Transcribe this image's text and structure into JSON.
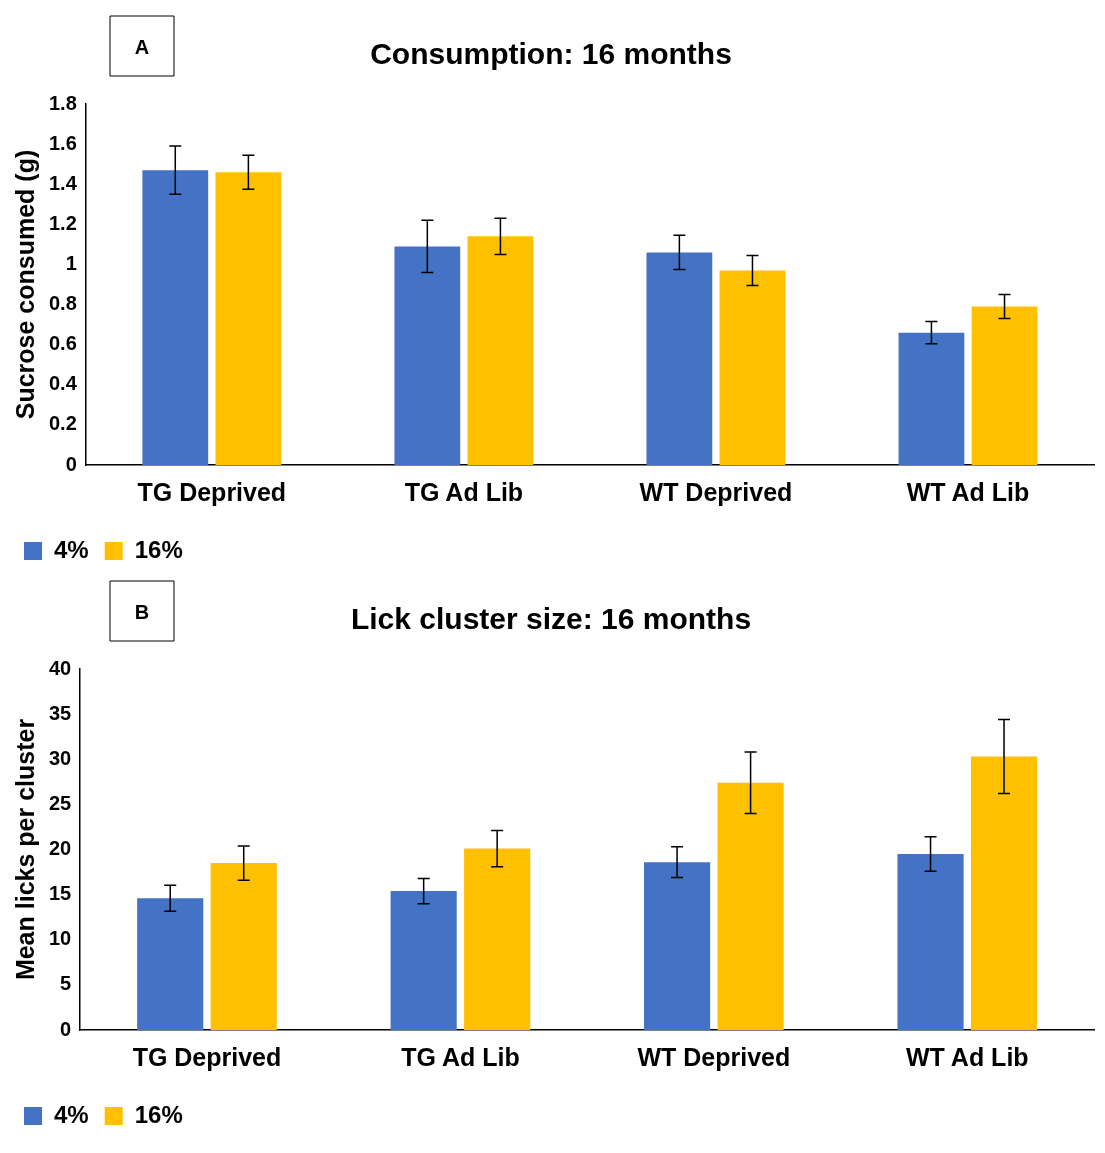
{
  "chart_data": [
    {
      "type": "bar",
      "title": "Consumption: 16 months",
      "ylabel": "Sucrose consumed (g)",
      "annotations": [
        "A"
      ],
      "categories": [
        "TG Deprived",
        "TG Ad Lib",
        "WT Deprived",
        "WT Ad Lib"
      ],
      "ylim": [
        0,
        1.8
      ],
      "yticks": [
        0,
        0.2,
        0.4,
        0.6,
        0.8,
        1,
        1.2,
        1.4,
        1.6,
        1.8
      ],
      "grid": false,
      "legend": "bottom left",
      "series": [
        {
          "name": "4%",
          "color": "#4472c4",
          "values": [
            1.47,
            1.09,
            1.06,
            0.66
          ],
          "errors": [
            0.12,
            0.13,
            0.085,
            0.055
          ]
        },
        {
          "name": "16%",
          "color": "#ffc000",
          "values": [
            1.46,
            1.14,
            0.97,
            0.79
          ],
          "errors": [
            0.085,
            0.09,
            0.075,
            0.06
          ]
        }
      ]
    },
    {
      "type": "bar",
      "title": "Lick cluster size: 16 months",
      "ylabel": "Mean licks per cluster",
      "annotations": [
        "B"
      ],
      "categories": [
        "TG Deprived",
        "TG Ad Lib",
        "WT Deprived",
        "WT Ad Lib"
      ],
      "ylim": [
        0,
        40
      ],
      "yticks": [
        0,
        5,
        10,
        15,
        20,
        25,
        30,
        35,
        40
      ],
      "grid": false,
      "legend": "bottom left",
      "series": [
        {
          "name": "4%",
          "color": "#4472c4",
          "values": [
            14.6,
            15.4,
            18.6,
            19.5
          ],
          "errors": [
            1.45,
            1.4,
            1.7,
            1.9
          ]
        },
        {
          "name": "16%",
          "color": "#ffc000",
          "values": [
            18.5,
            20.1,
            27.4,
            30.3
          ],
          "errors": [
            1.9,
            2.0,
            3.4,
            4.1
          ]
        }
      ]
    }
  ]
}
